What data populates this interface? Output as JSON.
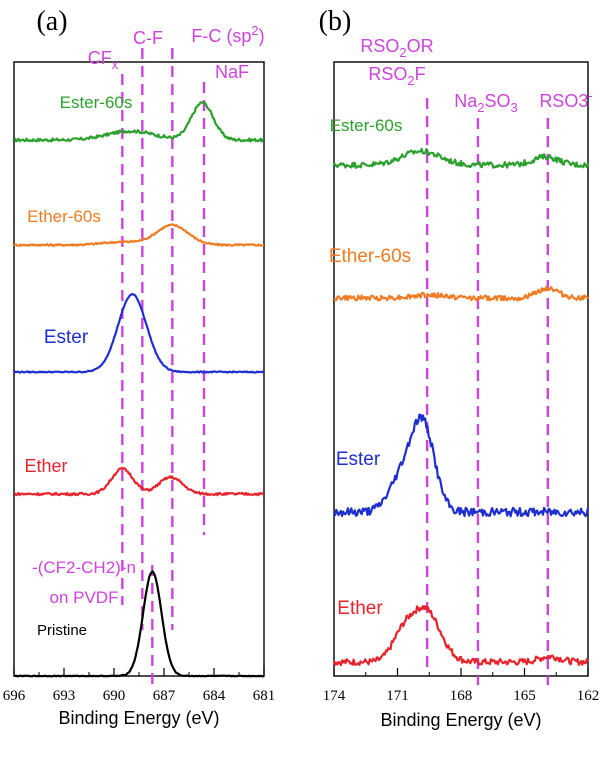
{
  "colors": {
    "annotation": "#cc44dd",
    "green": "#2ca02c",
    "orange": "#f07b22",
    "blue": "#1f2fcf",
    "red": "#e8232b",
    "black": "#000000"
  },
  "chart_data": [
    {
      "type": "line",
      "panel_label": "(a)",
      "xlabel": "Binding Energy (eV)",
      "xlim": [
        696,
        681
      ],
      "xticks": [
        "696",
        "693",
        "690",
        "687",
        "684",
        "681"
      ],
      "annotations": [
        {
          "text": "CF",
          "sub": "x",
          "x": 689.5
        },
        {
          "text": "C-F",
          "x": 688.3
        },
        {
          "text": "F-C (sp",
          "sup": "2",
          "tail": ")",
          "x": 686.4
        },
        {
          "text": "NaF",
          "x": 684.6
        },
        {
          "text": "-(CF2-CH2)-n",
          "x": 687.9
        },
        {
          "text": "on PVDF",
          "x": 687.9
        }
      ],
      "series": [
        {
          "name": "Ester-60s",
          "color": "green",
          "peaks": [
            [
              689.0,
              0.15,
              1.4
            ],
            [
              684.7,
              0.62,
              0.65
            ]
          ],
          "noise": 0.05
        },
        {
          "name": "Ether-60s",
          "color": "orange",
          "peaks": [
            [
              689.5,
              0.05,
              1.2
            ],
            [
              686.5,
              0.33,
              0.95
            ]
          ],
          "noise": 0.03
        },
        {
          "name": "Ester",
          "color": "blue",
          "peaks": [
            [
              688.9,
              1.05,
              0.85
            ]
          ],
          "noise": 0.015
        },
        {
          "name": "Ether",
          "color": "red",
          "peaks": [
            [
              689.5,
              0.42,
              0.65
            ],
            [
              686.6,
              0.28,
              0.7
            ]
          ],
          "noise": 0.04
        },
        {
          "name": "Pristine",
          "color": "black",
          "peaks": [
            [
              687.7,
              1.45,
              0.55
            ]
          ],
          "noise": 0.01
        }
      ]
    },
    {
      "type": "line",
      "panel_label": "(b)",
      "xlabel": "Binding Energy (eV)",
      "xlim": [
        174,
        162
      ],
      "xticks": [
        "174",
        "171",
        "168",
        "165",
        "162"
      ],
      "annotations": [
        {
          "text": "RSO",
          "sub": "2",
          "tail": "OR",
          "x": 169.6
        },
        {
          "text": "RSO",
          "sub": "2",
          "tail": "F",
          "x": 169.6
        },
        {
          "text": "Na",
          "sub": "2",
          "tail": "SO",
          "sub2": "3",
          "x": 167.2
        },
        {
          "text": "RSO3",
          "sup": "-",
          "x": 163.9
        }
      ],
      "series": [
        {
          "name": "Ester-60s",
          "color": "green",
          "peaks": [
            [
              169.9,
              0.25,
              0.9
            ],
            [
              164.0,
              0.15,
              0.6
            ]
          ],
          "noise": 0.1
        },
        {
          "name": "Ether-60s",
          "color": "orange",
          "peaks": [
            [
              169.5,
              0.05,
              0.8
            ],
            [
              163.9,
              0.18,
              0.5
            ]
          ],
          "noise": 0.09
        },
        {
          "name": "Ester",
          "color": "blue",
          "peaks": [
            [
              169.8,
              0.9,
              0.55
            ],
            [
              170.8,
              0.35,
              0.6
            ]
          ],
          "noise": 0.09
        },
        {
          "name": "Ether",
          "color": "red",
          "peaks": [
            [
              169.7,
              0.75,
              0.7
            ],
            [
              170.8,
              0.3,
              0.5
            ],
            [
              163.8,
              0.08,
              0.5
            ]
          ],
          "noise": 0.09
        }
      ]
    }
  ]
}
